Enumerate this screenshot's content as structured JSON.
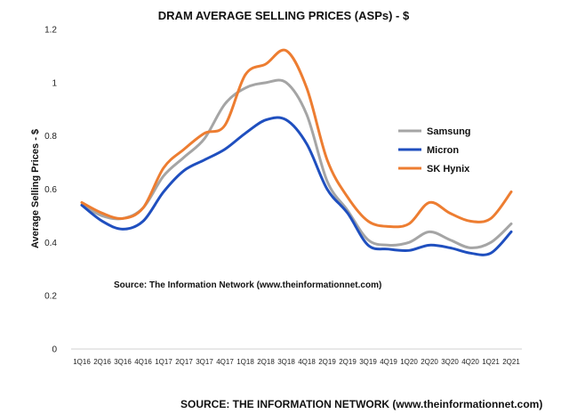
{
  "chart_data": {
    "type": "line",
    "title": "DRAM AVERAGE SELLING PRICES (ASPs) - $",
    "ylabel": "Average Selling Prices - $",
    "xlabel": "",
    "ylim": [
      0,
      1.2
    ],
    "yticks": [
      "0",
      "0.2",
      "0.4",
      "0.6",
      "0.8",
      "1",
      "1.2"
    ],
    "categories": [
      "1Q16",
      "2Q16",
      "3Q16",
      "4Q16",
      "1Q17",
      "2Q17",
      "3Q17",
      "4Q17",
      "1Q18",
      "2Q18",
      "3Q18",
      "4Q18",
      "2Q19",
      "2Q19",
      "3Q19",
      "4Q19",
      "1Q20",
      "2Q20",
      "3Q20",
      "4Q20",
      "1Q21",
      "2Q21"
    ],
    "series": [
      {
        "name": "Samsung",
        "color": "#a5a5a5",
        "values": [
          0.54,
          0.5,
          0.49,
          0.53,
          0.65,
          0.72,
          0.79,
          0.92,
          0.98,
          1.0,
          1.0,
          0.88,
          0.63,
          0.52,
          0.41,
          0.39,
          0.4,
          0.44,
          0.41,
          0.38,
          0.4,
          0.47
        ]
      },
      {
        "name": "Micron",
        "color": "#1f4fbf",
        "values": [
          0.54,
          0.48,
          0.45,
          0.48,
          0.59,
          0.67,
          0.71,
          0.75,
          0.81,
          0.86,
          0.86,
          0.77,
          0.6,
          0.51,
          0.39,
          0.375,
          0.37,
          0.39,
          0.38,
          0.36,
          0.36,
          0.44
        ]
      },
      {
        "name": "SK Hynix",
        "color": "#ed7d31",
        "values": [
          0.55,
          0.51,
          0.49,
          0.53,
          0.68,
          0.75,
          0.81,
          0.84,
          1.03,
          1.07,
          1.12,
          0.98,
          0.71,
          0.57,
          0.48,
          0.46,
          0.47,
          0.55,
          0.51,
          0.48,
          0.49,
          0.59
        ]
      }
    ],
    "legend_position": "right",
    "grid": false,
    "annotation": "Source: The Information Network (www.theinformationnet.com)",
    "footer": "SOURCE: THE INFORMATION NETWORK (www.theinformationnet.com)"
  }
}
